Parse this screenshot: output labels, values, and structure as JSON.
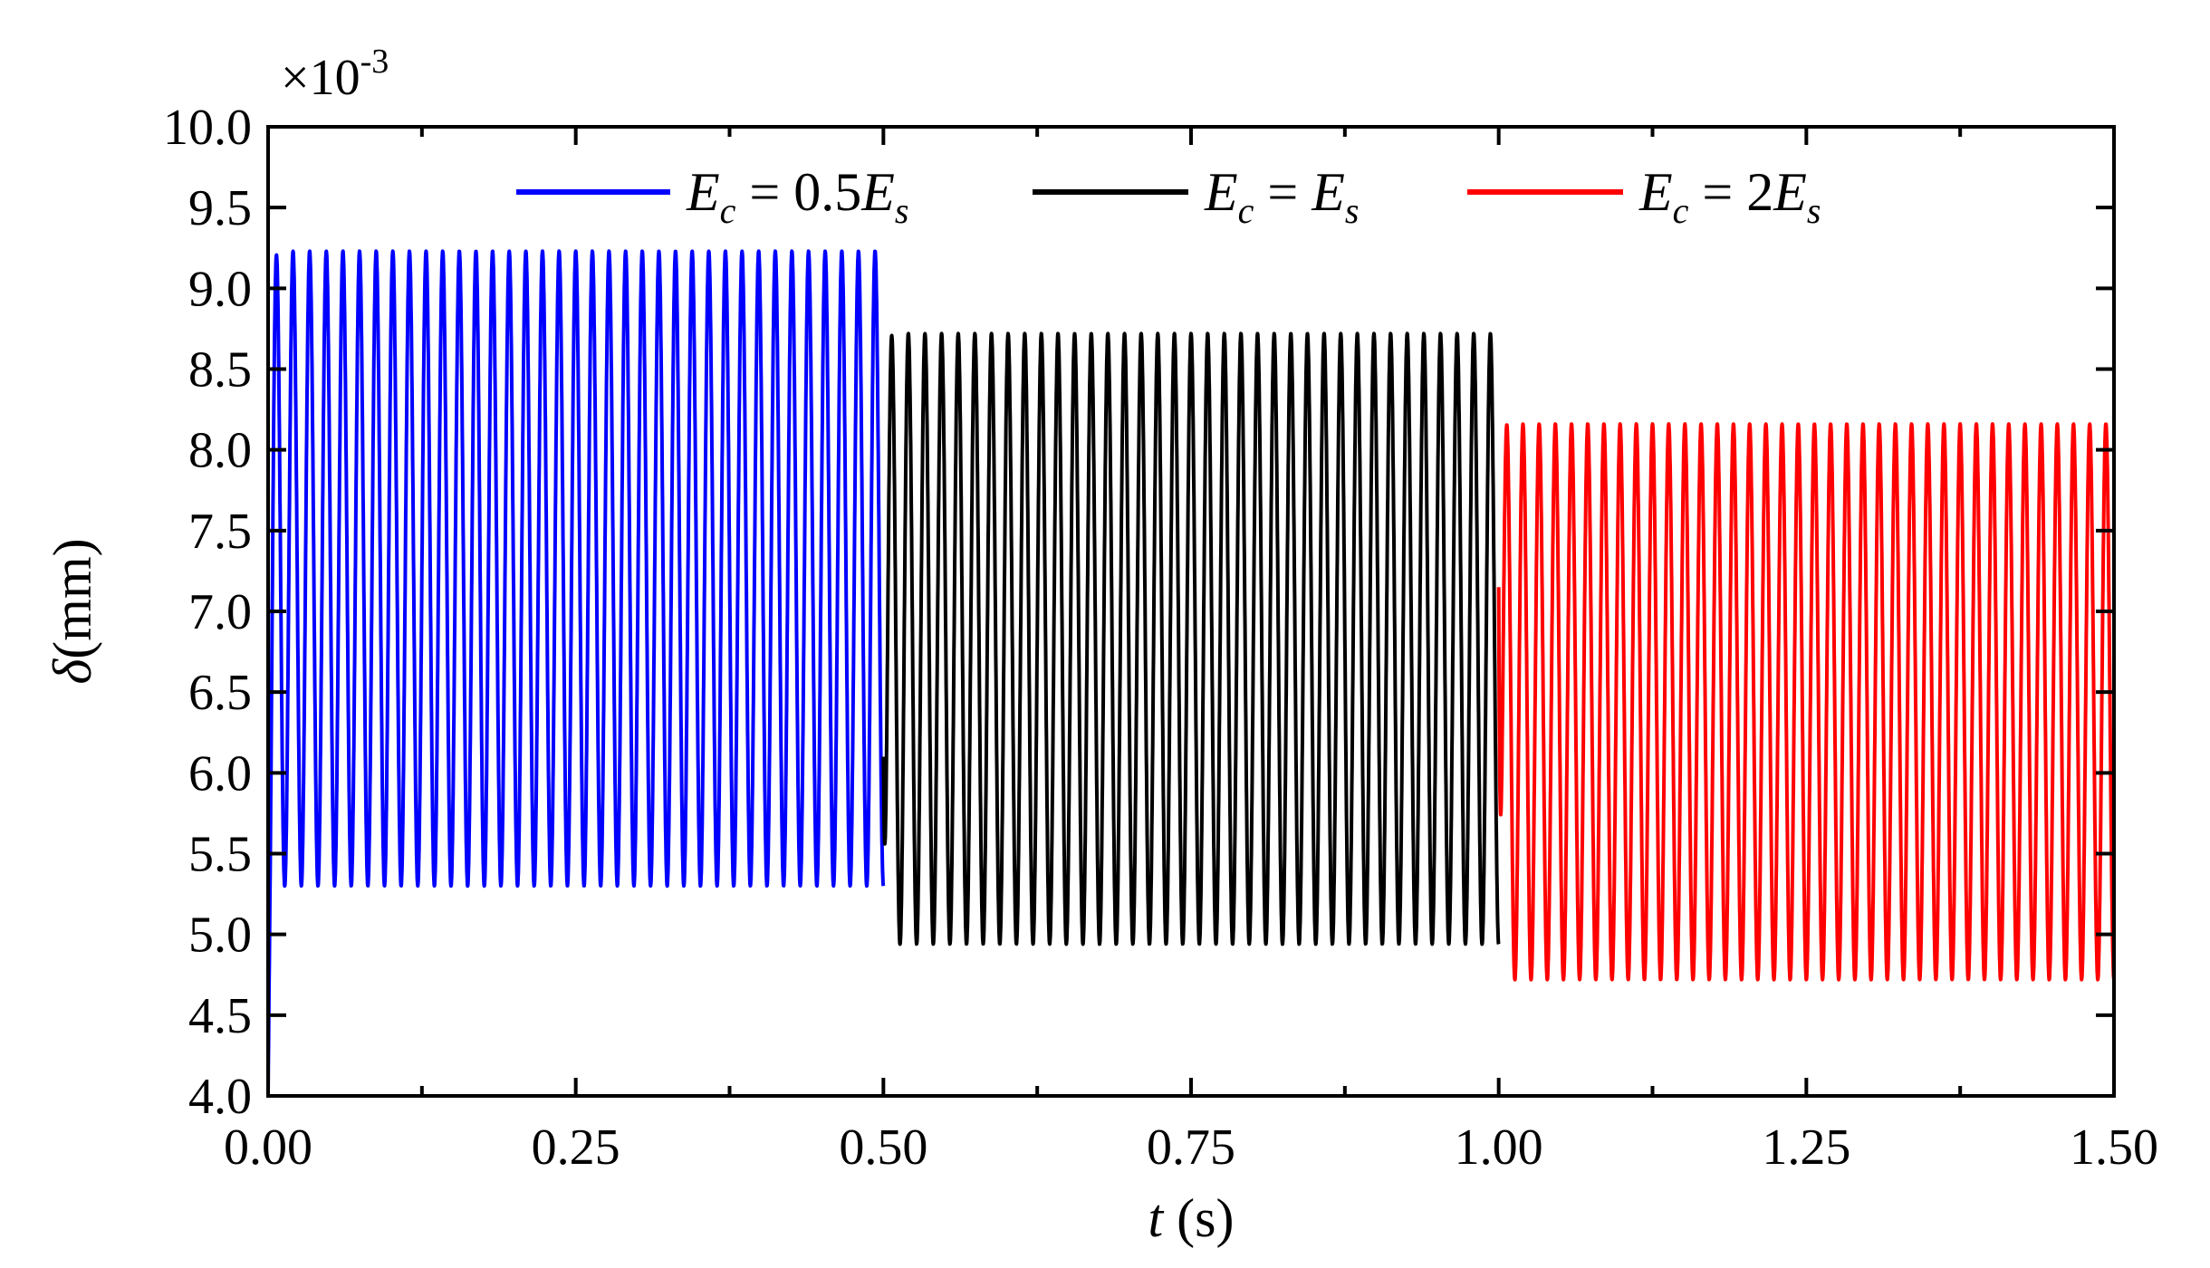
{
  "chart_data": {
    "type": "line",
    "xlabel_symbol": "t",
    "xlabel_unit": " (s)",
    "ylabel_symbol": "δ",
    "ylabel_unit": "(mm)",
    "y_multiplier": "×10",
    "y_multiplier_exp": "-3",
    "xlim": [
      0.0,
      1.5
    ],
    "ylim": [
      4.0,
      10.0
    ],
    "x_ticks": [
      "0.00",
      "0.25",
      "0.50",
      "0.75",
      "1.00",
      "1.25",
      "1.50"
    ],
    "y_ticks": [
      "4.0",
      "4.5",
      "5.0",
      "5.5",
      "6.0",
      "6.5",
      "7.0",
      "7.5",
      "8.0",
      "8.5",
      "9.0",
      "9.5",
      "10.0"
    ],
    "grid": false,
    "legend_position": "top",
    "series": [
      {
        "legend_parts": {
          "a": "E",
          "a_sub": "c",
          "mid": " = 0.5",
          "b": "E",
          "b_sub": "s"
        },
        "color": "#0000ff",
        "x_range": [
          0.0,
          0.5
        ],
        "peak": 9.23,
        "trough": 5.3,
        "cycles": 37,
        "initial": 4.0
      },
      {
        "legend_parts": {
          "a": "E",
          "a_sub": "c",
          "mid": " = ",
          "b": "E",
          "b_sub": "s"
        },
        "color": "#000000",
        "x_range": [
          0.5,
          1.0
        ],
        "peak": 8.72,
        "trough": 4.94,
        "cycles": 37,
        "initial": 6.1
      },
      {
        "legend_parts": {
          "a": "E",
          "a_sub": "c",
          "mid": " = 2",
          "b": "E",
          "b_sub": "s"
        },
        "color": "#ff0000",
        "x_range": [
          1.0,
          1.5
        ],
        "peak": 8.16,
        "trough": 4.72,
        "cycles": 38,
        "initial": 7.15
      }
    ]
  }
}
